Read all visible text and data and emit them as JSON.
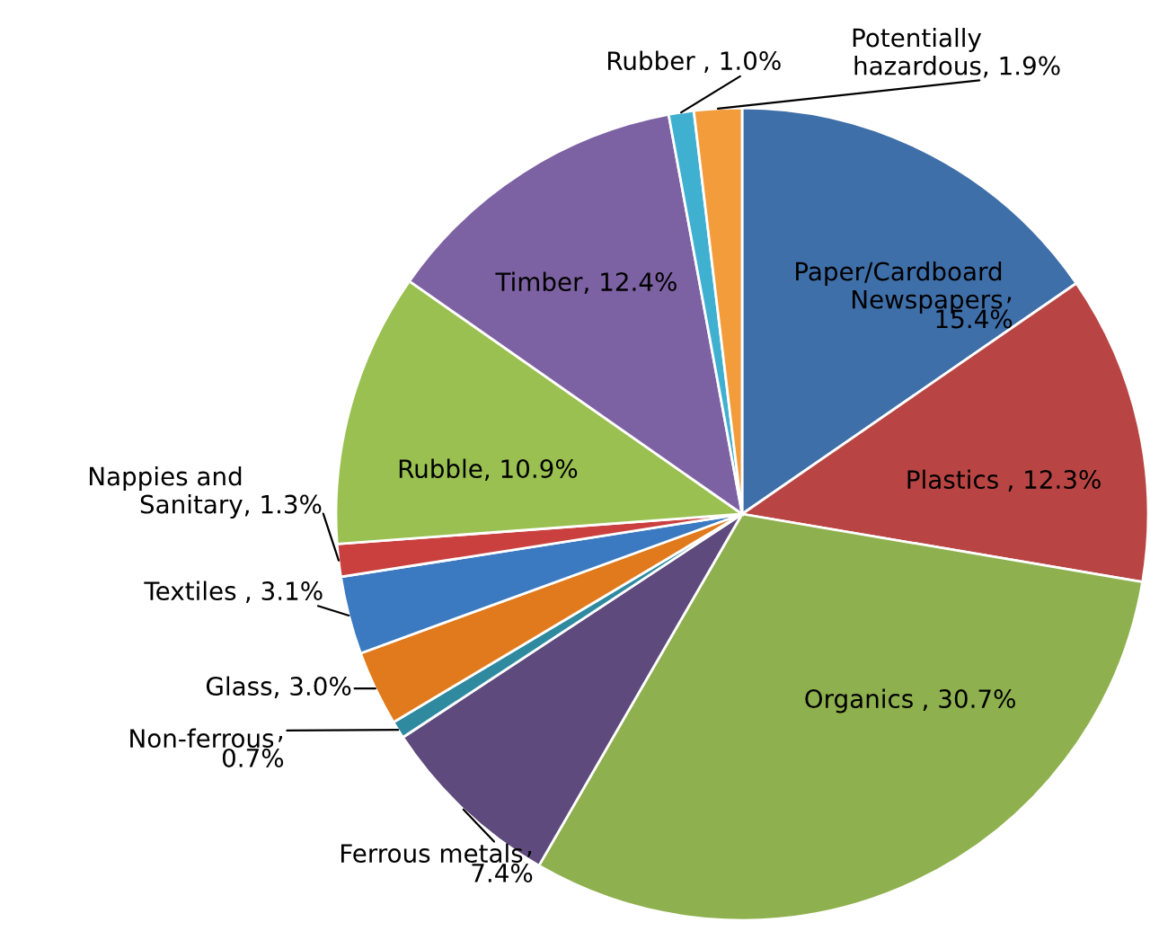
{
  "chart_data": {
    "type": "pie",
    "categories": [
      "Paper/Cardboard Newspapers",
      "Plastics",
      "Organics",
      "Ferrous metals",
      "Non-ferrous",
      "Glass",
      "Textiles",
      "Nappies and Sanitary",
      "Rubble",
      "Timber",
      "Rubber",
      "Potentially hazardous"
    ],
    "values": [
      15.4,
      12.3,
      30.7,
      7.4,
      0.7,
      3.0,
      3.1,
      1.3,
      10.9,
      12.4,
      1.0,
      1.9
    ],
    "colors": [
      "#3f6fa9",
      "#b84543",
      "#8fb04e",
      "#5e4a7c",
      "#2f8aa0",
      "#e07a1c",
      "#3b79c0",
      "#c9403e",
      "#99c050",
      "#7d62a3",
      "#3fb0d0",
      "#f39c3c"
    ],
    "value_labels": [
      ", 15.4%",
      ", 12.3%",
      ", 30.7%",
      ", 7.4%",
      ", 0.7%",
      ", 3.0%",
      ", 3.1%",
      ", 1.3%",
      ", 10.9%",
      ", 12.4%",
      ", 1.0%",
      ", 1.9%"
    ]
  }
}
